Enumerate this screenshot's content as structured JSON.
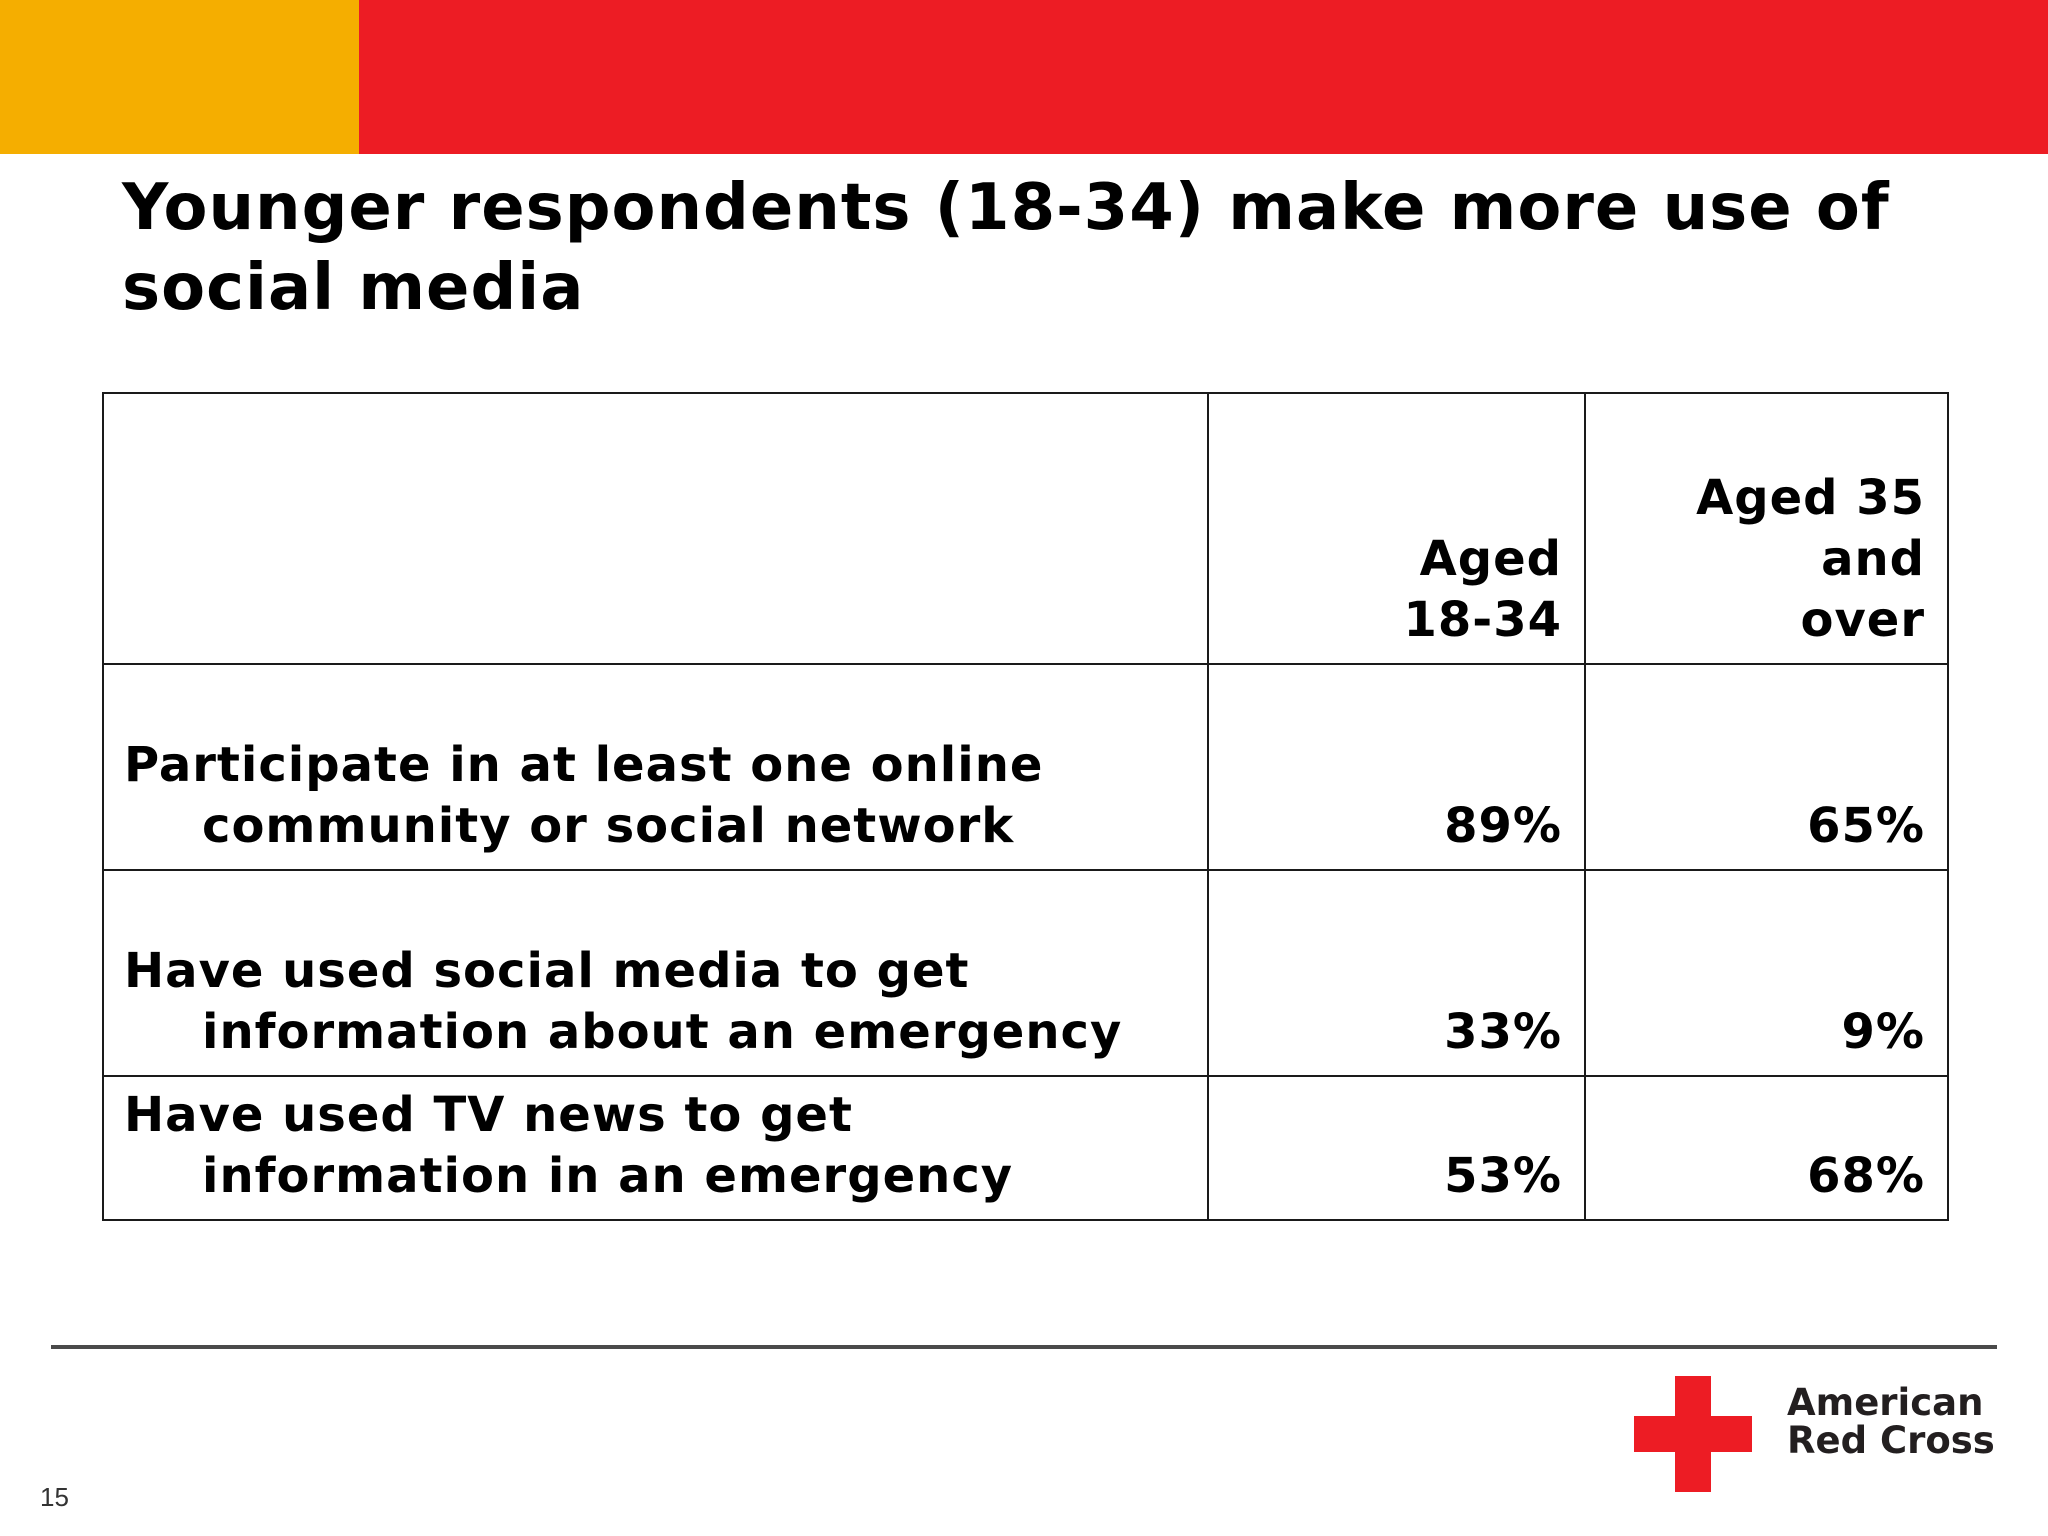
{
  "colors": {
    "gold_bar": "#f5ae00",
    "red_bar": "#ed1c24",
    "cross_red": "#ed1c24"
  },
  "title": "Younger respondents (18-34) make more use of social media",
  "table": {
    "headers": [
      "",
      "Aged 18-34",
      "Aged 35 and over"
    ],
    "header_lines": {
      "aged_18_34": [
        "Aged",
        "18-34"
      ],
      "aged_35_over": [
        "Aged 35",
        "and",
        "over"
      ]
    },
    "rows": [
      {
        "label_line1": "Participate in at least one online",
        "label_line2": "community or social network",
        "aged_18_34": "89%",
        "aged_35_over": "65%"
      },
      {
        "label_line1": "Have used social media to get",
        "label_line2": "information about an emergency",
        "aged_18_34": "33%",
        "aged_35_over": "9%"
      },
      {
        "label_line1": "Have used TV news to get",
        "label_line2": "information in an emergency",
        "aged_18_34": "53%",
        "aged_35_over": "68%"
      }
    ]
  },
  "logo": {
    "line1": "American",
    "line2": "Red Cross",
    "icon": "red-cross-icon"
  },
  "page_number": "15"
}
